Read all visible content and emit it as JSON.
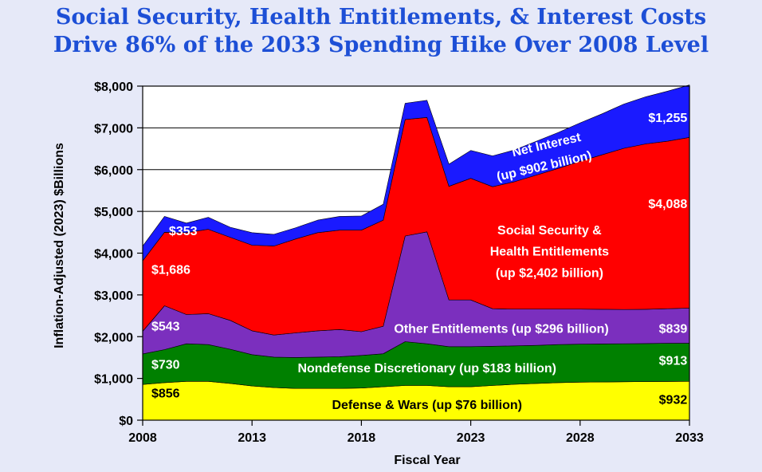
{
  "title_lines": [
    "Social Security, Health Entitlements, & Interest Costs",
    "Drive 86% of the 2033 Spending Hike Over 2008 Level"
  ],
  "chart_data": {
    "type": "area",
    "stacked": true,
    "xlabel": "Fiscal Year",
    "ylabel": "Inflation-Adjusted (2023) $Billions",
    "xlim": [
      2008,
      2033
    ],
    "ylim": [
      0,
      8000
    ],
    "x_ticks": [
      2008,
      2013,
      2018,
      2023,
      2028,
      2033
    ],
    "y_ticks": [
      0,
      1000,
      2000,
      3000,
      4000,
      5000,
      6000,
      7000,
      8000
    ],
    "y_tick_labels": [
      "$0",
      "$1,000",
      "$2,000",
      "$3,000",
      "$4,000",
      "$5,000",
      "$6,000",
      "$7,000",
      "$8,000"
    ],
    "grid": "horizontal",
    "x": [
      2008,
      2009,
      2010,
      2011,
      2012,
      2013,
      2014,
      2015,
      2016,
      2017,
      2018,
      2019,
      2020,
      2021,
      2022,
      2023,
      2024,
      2025,
      2026,
      2027,
      2028,
      2029,
      2030,
      2031,
      2032,
      2033
    ],
    "series": [
      {
        "name": "Defense & Wars (up $76 billion)",
        "color": "#ffff00",
        "values": [
          856,
          900,
          930,
          930,
          880,
          820,
          780,
          760,
          760,
          760,
          770,
          800,
          830,
          830,
          800,
          800,
          830,
          860,
          880,
          900,
          910,
          915,
          920,
          925,
          928,
          932
        ]
      },
      {
        "name": "Nondefense Discretionary (up $183 billion)",
        "color": "#008000",
        "values": [
          730,
          790,
          900,
          880,
          820,
          750,
          730,
          740,
          750,
          760,
          780,
          790,
          1050,
          1000,
          960,
          960,
          940,
          920,
          910,
          910,
          910,
          910,
          910,
          910,
          912,
          913
        ]
      },
      {
        "name": "Other Entitlements (up $296 billion)",
        "color": "#7b2fbe",
        "values": [
          543,
          1050,
          700,
          740,
          690,
          570,
          530,
          590,
          630,
          650,
          570,
          660,
          2530,
          2680,
          1120,
          1120,
          900,
          880,
          870,
          850,
          840,
          830,
          820,
          820,
          830,
          839
        ]
      },
      {
        "name": "Social Security & Health Entitlements (up $2,402 billion)",
        "color": "#ff0000",
        "values": [
          1686,
          1760,
          1960,
          2020,
          1990,
          2050,
          2130,
          2250,
          2350,
          2380,
          2430,
          2540,
          2790,
          2740,
          2720,
          2910,
          2920,
          3050,
          3210,
          3370,
          3540,
          3700,
          3860,
          3960,
          4010,
          4088
        ]
      },
      {
        "name": "Net Interest (up $902 billion)",
        "color": "#1a1aff",
        "values": [
          353,
          380,
          230,
          290,
          240,
          300,
          280,
          270,
          300,
          330,
          340,
          380,
          390,
          410,
          530,
          670,
          740,
          760,
          810,
          860,
          920,
          980,
          1060,
          1130,
          1200,
          1255
        ]
      }
    ],
    "annotations": [
      {
        "text": "$856",
        "x": 2008.4,
        "y": 540,
        "color": "#000000"
      },
      {
        "text": "$730",
        "x": 2008.4,
        "y": 1230,
        "color": "#ffffff"
      },
      {
        "text": "$543",
        "x": 2008.4,
        "y": 2150,
        "color": "#ffffff"
      },
      {
        "text": "$1,686",
        "x": 2008.4,
        "y": 3500,
        "color": "#ffffff"
      },
      {
        "text": "$353",
        "x": 2009.2,
        "y": 4430,
        "color": "#ffffff"
      },
      {
        "text": "$932",
        "x": 2032.9,
        "y": 390,
        "color": "#000000",
        "anchor": "end"
      },
      {
        "text": "$913",
        "x": 2032.9,
        "y": 1330,
        "color": "#ffffff",
        "anchor": "end"
      },
      {
        "text": "$839",
        "x": 2032.9,
        "y": 2090,
        "color": "#ffffff",
        "anchor": "end"
      },
      {
        "text": "$4,088",
        "x": 2032.9,
        "y": 5080,
        "color": "#ffffff",
        "anchor": "end"
      },
      {
        "text": "$1,255",
        "x": 2032.9,
        "y": 7140,
        "color": "#ffffff",
        "anchor": "end"
      },
      {
        "text": "Defense & Wars (up $76 billion)",
        "x": 2021.0,
        "y": 270,
        "color": "#000000",
        "anchor": "middle"
      },
      {
        "text": "Nondefense Discretionary (up $183 billion)",
        "x": 2021.0,
        "y": 1150,
        "color": "#ffffff",
        "anchor": "middle"
      },
      {
        "text": "Other Entitlements (up $296 billion)",
        "x": 2024.4,
        "y": 2090,
        "color": "#ffffff",
        "anchor": "middle"
      },
      {
        "text": "Social Security &",
        "x": 2026.6,
        "y": 4450,
        "color": "#ffffff",
        "anchor": "middle"
      },
      {
        "text": "Health Entitlements",
        "x": 2026.6,
        "y": 3940,
        "color": "#ffffff",
        "anchor": "middle"
      },
      {
        "text": "(up $2,402 billion)",
        "x": 2026.6,
        "y": 3430,
        "color": "#ffffff",
        "anchor": "middle"
      },
      {
        "text": "Net Interest",
        "x": 2026.5,
        "y": 6500,
        "color": "#ffffff",
        "anchor": "middle",
        "rotate": -13
      },
      {
        "text": "(up $902 billion)",
        "x": 2026.4,
        "y": 5990,
        "color": "#ffffff",
        "anchor": "middle",
        "rotate": -13
      }
    ]
  }
}
